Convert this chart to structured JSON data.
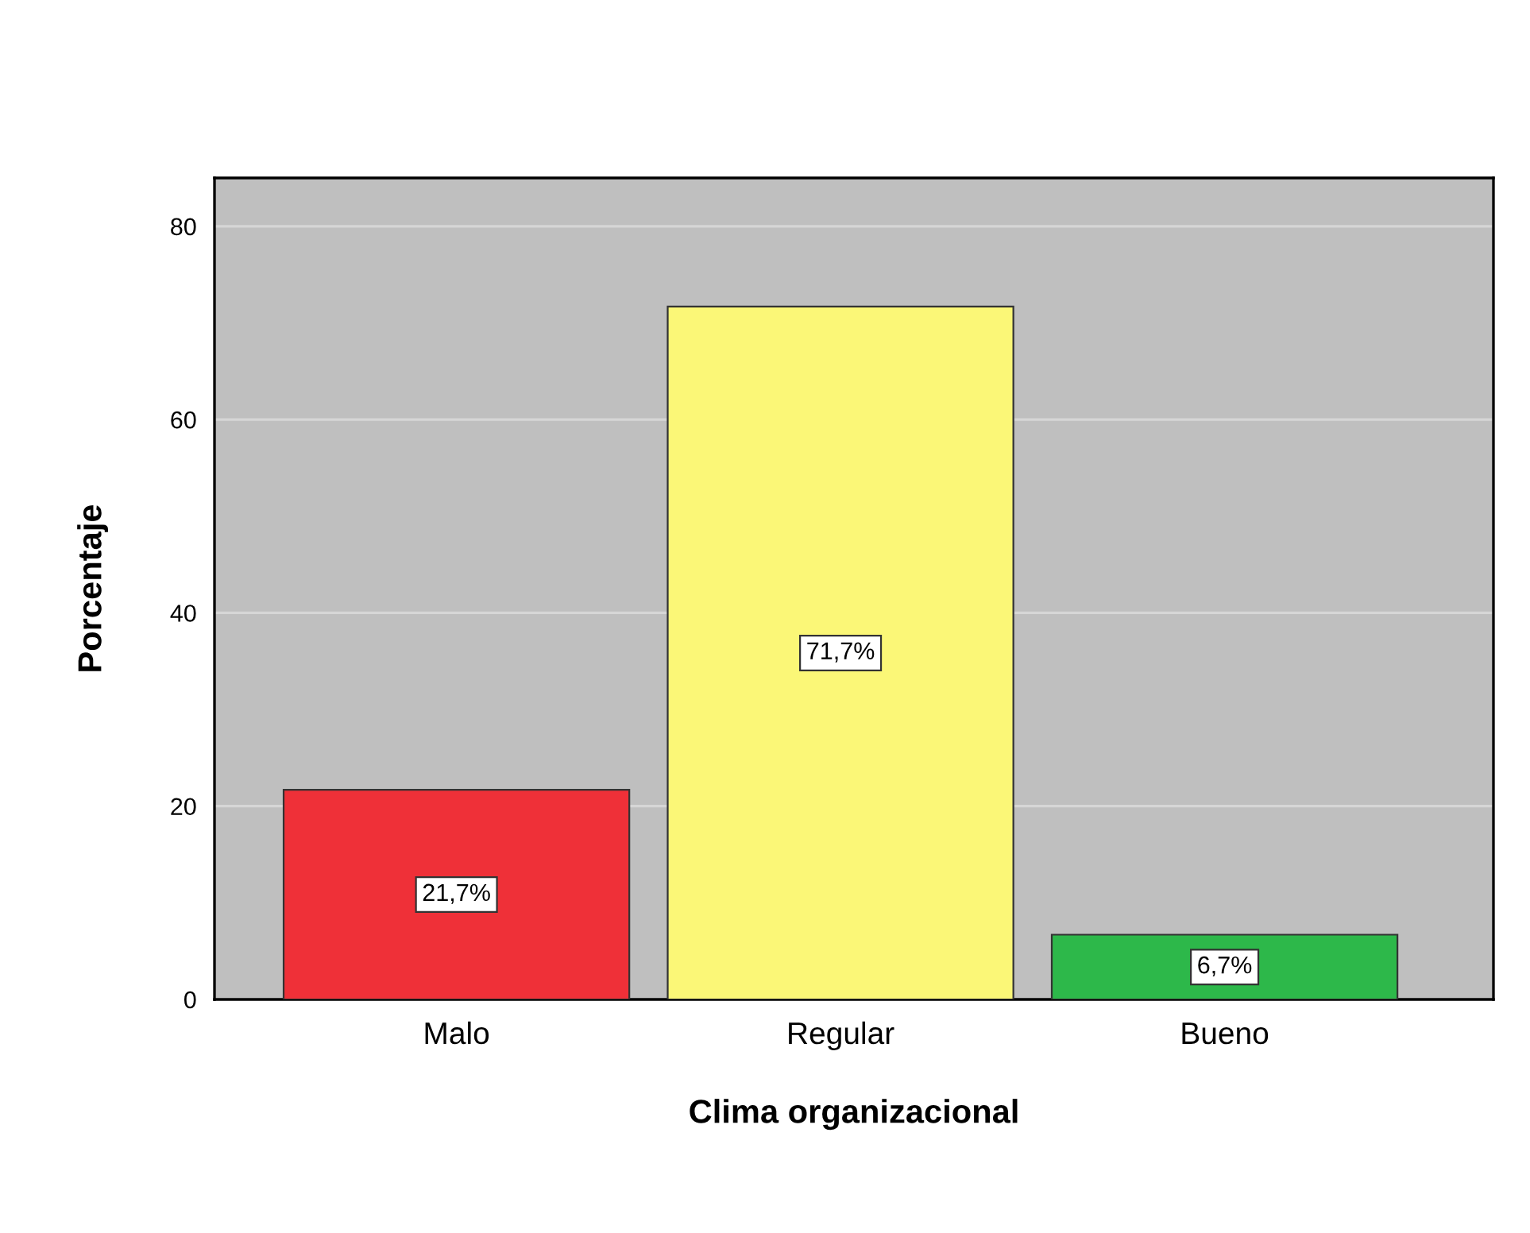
{
  "chart_data": {
    "type": "bar",
    "categories": [
      "Malo",
      "Regular",
      "Bueno"
    ],
    "values": [
      21.7,
      71.7,
      6.7
    ],
    "colors": [
      "#ef3038",
      "#fbf777",
      "#2db84a"
    ],
    "value_labels": [
      "21,7%",
      "71,7%",
      "6,7%"
    ],
    "xlabel": "Clima organizacional",
    "ylabel": "Porcentaje",
    "ylim": [
      0,
      85
    ],
    "yticks": [
      0,
      20,
      40,
      60,
      80
    ],
    "grid": "y"
  }
}
